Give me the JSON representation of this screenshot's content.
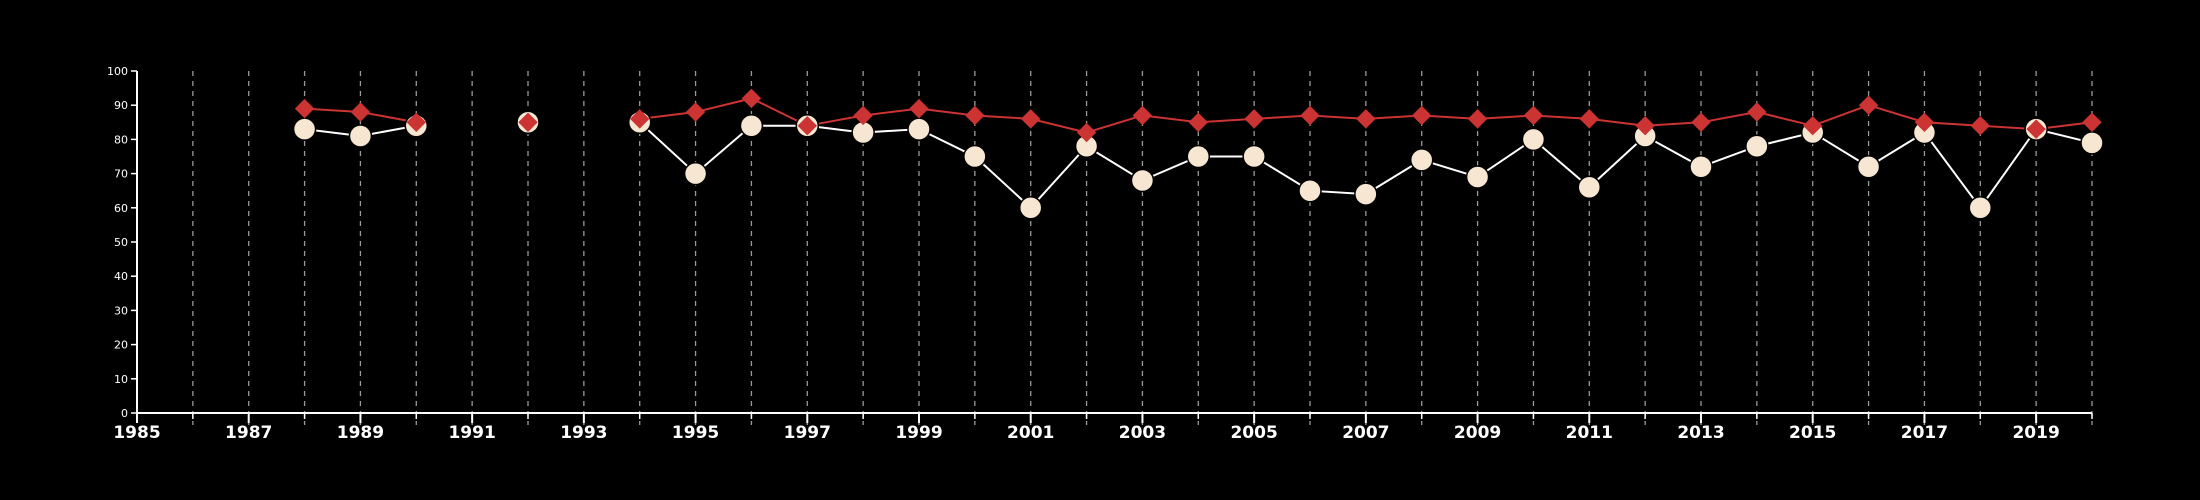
{
  "chart_data": {
    "type": "line",
    "title": "",
    "xlabel": "",
    "ylabel": "",
    "xlim": [
      1985,
      2020
    ],
    "ylim": [
      0,
      100
    ],
    "x_ticks": [
      1985,
      1987,
      1989,
      1991,
      1993,
      1995,
      1997,
      1999,
      2001,
      2003,
      2005,
      2007,
      2009,
      2011,
      2013,
      2015,
      2017,
      2019
    ],
    "y_ticks": [
      0,
      10,
      20,
      30,
      40,
      50,
      60,
      70,
      80,
      90,
      100
    ],
    "grid": "vertical dashed lines at each year",
    "legend": "none",
    "x": [
      1985,
      1986,
      1987,
      1988,
      1989,
      1990,
      1991,
      1992,
      1993,
      1994,
      1995,
      1996,
      1997,
      1998,
      1999,
      2000,
      2001,
      2002,
      2003,
      2004,
      2005,
      2006,
      2007,
      2008,
      2009,
      2010,
      2011,
      2012,
      2013,
      2014,
      2015,
      2016,
      2017,
      2018,
      2019,
      2020
    ],
    "series": [
      {
        "marker": "circle",
        "color": "#f6e6d2",
        "values": [
          null,
          null,
          null,
          83,
          81,
          84,
          null,
          85,
          null,
          85,
          70,
          84,
          84,
          82,
          83,
          75,
          60,
          78,
          68,
          75,
          75,
          65,
          64,
          74,
          69,
          80,
          66,
          81,
          72,
          78,
          82,
          72,
          82,
          60,
          83,
          79
        ]
      },
      {
        "marker": "diamond",
        "color": "#cc3333",
        "values": [
          null,
          null,
          null,
          89,
          88,
          85,
          null,
          85,
          null,
          86,
          88,
          92,
          84,
          87,
          89,
          87,
          86,
          82,
          87,
          85,
          86,
          87,
          86,
          87,
          86,
          87,
          86,
          84,
          85,
          88,
          84,
          90,
          85,
          84,
          83,
          85
        ]
      }
    ]
  }
}
